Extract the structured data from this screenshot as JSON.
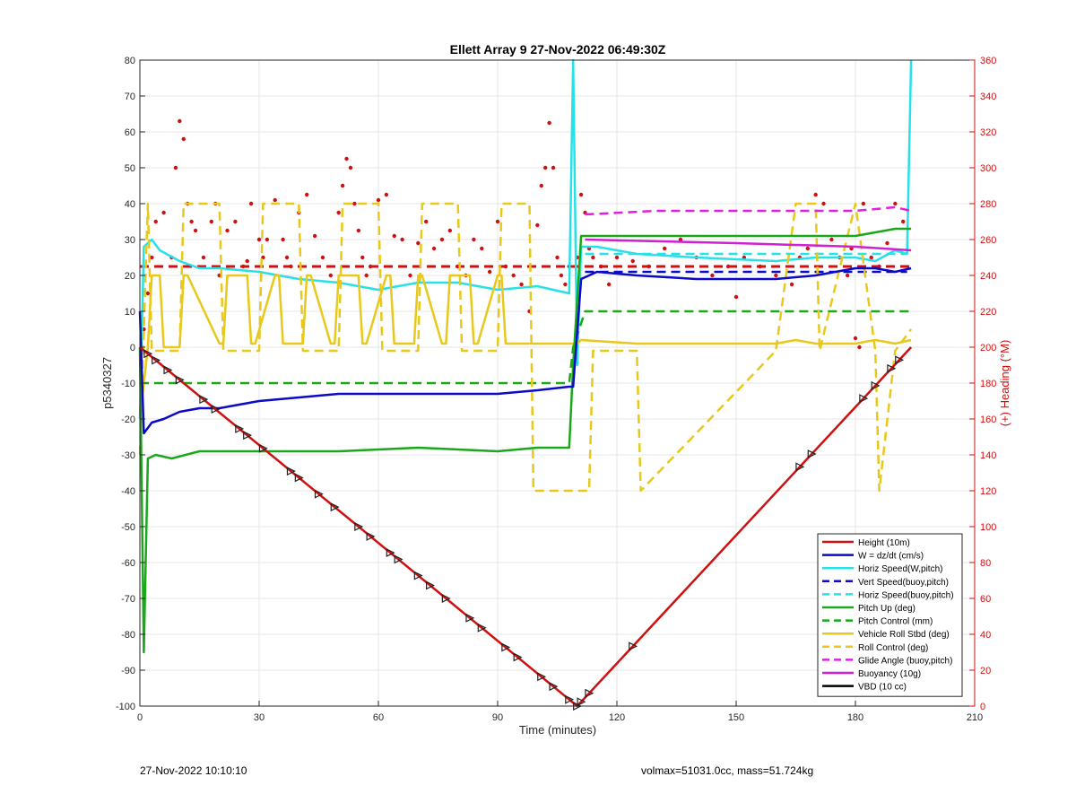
{
  "footer": {
    "left": "27-Nov-2022 10:10:10",
    "right": "volmax=51031.0cc, mass=51.724kg"
  },
  "chart_data": {
    "type": "line",
    "title": "Ellett Array 9 27-Nov-2022 06:49:30Z",
    "xlabel": "Time (minutes)",
    "ylabel": "p5340327",
    "y2label": "(+) Heading (°M)",
    "xlim": [
      0,
      210
    ],
    "ylim": [
      -100,
      80
    ],
    "y2lim": [
      0,
      360
    ],
    "xticks": [
      0,
      30,
      60,
      90,
      120,
      150,
      180,
      210
    ],
    "yticks": [
      -100,
      -90,
      -80,
      -70,
      -60,
      -50,
      -40,
      -30,
      -20,
      -10,
      0,
      10,
      20,
      30,
      40,
      50,
      60,
      70,
      80
    ],
    "y2ticks": [
      0,
      20,
      40,
      60,
      80,
      100,
      120,
      140,
      160,
      180,
      200,
      220,
      240,
      260,
      280,
      300,
      320,
      340,
      360
    ],
    "grid": true,
    "legend_position": "bottom-right",
    "colors": {
      "height": "#d01010",
      "w": "#0a0ac8",
      "horiz": "#28e0e8",
      "pitch": "#1aa81a",
      "roll": "#e8c81a",
      "glide": "#e020e0",
      "buoy": "#d020d0",
      "vbd": "#000000",
      "heading": "#d01010",
      "right_axis": "#d01010"
    },
    "series": [
      {
        "name": "Height (10m)",
        "style": "solid",
        "color": "#d01010",
        "x": [
          0,
          110,
          194
        ],
        "y": [
          0,
          -100,
          0
        ]
      },
      {
        "name": "W = dz/dt (cm/s)",
        "style": "solid",
        "color": "#0a0ac8",
        "x": [
          0,
          1,
          3,
          6,
          10,
          15,
          20,
          30,
          40,
          50,
          60,
          70,
          80,
          90,
          100,
          108,
          109,
          111,
          115,
          125,
          140,
          160,
          170,
          180,
          185,
          190,
          194
        ],
        "y": [
          10,
          -24,
          -21,
          -20,
          -18,
          -17,
          -17,
          -15,
          -14,
          -13,
          -13,
          -13,
          -13,
          -13,
          -12,
          -11,
          -11,
          19,
          21,
          20,
          19,
          19,
          20,
          22,
          22,
          21,
          22
        ]
      },
      {
        "name": "Horiz Speed(W,pitch)",
        "style": "solid",
        "color": "#28e0e8",
        "x": [
          0,
          1,
          3,
          5,
          10,
          15,
          20,
          30,
          40,
          50,
          60,
          70,
          80,
          90,
          100,
          108,
          109,
          110,
          111,
          115,
          125,
          140,
          160,
          170,
          180,
          185,
          190,
          193,
          194
        ],
        "y": [
          -20,
          28,
          30,
          27,
          24,
          22,
          22,
          21,
          19,
          18,
          16,
          18,
          18,
          16,
          17,
          15,
          80,
          -5,
          28,
          28,
          26,
          25,
          24,
          25,
          25,
          24,
          27,
          26,
          80
        ]
      },
      {
        "name": "Vert Speed(buoy,pitch)",
        "style": "dashed",
        "color": "#0a0ac8",
        "x": [
          112,
          193
        ],
        "y": [
          21,
          21
        ]
      },
      {
        "name": "Horiz Speed(buoy,pitch)",
        "style": "dashed",
        "color": "#28e0e8",
        "x": [
          112,
          193
        ],
        "y": [
          26,
          26
        ]
      },
      {
        "name": "Pitch Up (deg)",
        "style": "solid",
        "color": "#1aa81a",
        "x": [
          0,
          1,
          2,
          4,
          8,
          15,
          30,
          50,
          70,
          90,
          100,
          108,
          109,
          111,
          130,
          160,
          180,
          190,
          194
        ],
        "y": [
          0,
          -85,
          -31,
          -30,
          -31,
          -29,
          -29,
          -29,
          -28,
          -29,
          -28,
          -28,
          -5,
          31,
          31,
          31,
          31,
          33,
          33
        ]
      },
      {
        "name": "Pitch Control (mm)",
        "style": "dashed",
        "color": "#1aa81a",
        "x": [
          0,
          1,
          108,
          109,
          112,
          140,
          194
        ],
        "y": [
          -10,
          -10,
          -10,
          0,
          10,
          10,
          10
        ]
      },
      {
        "name": "Vehicle Roll Stbd (deg)",
        "style": "solid",
        "color": "#e8c81a",
        "x": [
          0,
          2,
          3,
          5,
          6,
          10,
          11,
          12,
          20,
          21,
          22,
          27,
          28,
          29,
          34,
          35,
          36,
          41,
          42,
          43,
          48,
          49,
          50,
          55,
          56,
          57,
          62,
          63,
          64,
          69,
          70,
          71,
          76,
          77,
          78,
          83,
          84,
          85,
          90,
          91,
          92,
          97,
          98,
          110,
          111,
          125,
          160,
          165,
          170,
          180,
          185,
          190,
          194
        ],
        "y": [
          -20,
          0,
          20,
          20,
          0,
          0,
          20,
          20,
          1,
          1,
          20,
          20,
          1,
          1,
          20,
          20,
          1,
          1,
          20,
          20,
          1,
          1,
          20,
          20,
          1,
          1,
          20,
          20,
          1,
          1,
          20,
          20,
          1,
          1,
          20,
          20,
          1,
          1,
          20,
          20,
          1,
          1,
          1,
          1,
          2,
          1,
          1,
          2,
          1,
          1,
          2,
          1,
          2
        ]
      },
      {
        "name": "Roll Control (deg)",
        "style": "dashed",
        "color": "#e8c81a",
        "x": [
          0,
          2,
          3,
          10,
          11,
          20,
          21,
          30,
          31,
          40,
          41,
          50,
          51,
          60,
          61,
          70,
          71,
          80,
          81,
          90,
          91,
          98,
          99,
          113,
          114,
          125,
          126,
          160,
          165,
          170,
          171,
          180,
          185,
          186,
          190,
          194
        ],
        "y": [
          -30,
          40,
          -1,
          -1,
          40,
          40,
          -1,
          -1,
          40,
          40,
          -1,
          -1,
          40,
          40,
          -1,
          -1,
          40,
          40,
          -1,
          -1,
          40,
          40,
          -40,
          -40,
          -1,
          -1,
          -40,
          -1,
          40,
          40,
          -1,
          40,
          -1,
          -40,
          -1,
          5
        ]
      },
      {
        "name": "Glide Angle (buoy,pitch)",
        "style": "dashed",
        "color": "#e020e0",
        "x": [
          112,
          130,
          160,
          180,
          190,
          194
        ],
        "y": [
          37,
          38,
          38,
          38,
          39,
          38
        ]
      },
      {
        "name": "Buoyancy (10g)",
        "style": "solid",
        "color": "#d020d0",
        "x": [
          112,
          150,
          180,
          194
        ],
        "y": [
          30,
          29,
          28,
          27
        ]
      },
      {
        "name": "VBD (10 cc)",
        "style": "solid",
        "color": "#000000",
        "x": [
          0,
          1,
          108,
          111,
          194
        ],
        "y": [
          15,
          -10.5,
          -10.5,
          10,
          11
        ]
      }
    ],
    "heading_reference": {
      "axis": "right",
      "style": "dashed",
      "color": "#d01010",
      "value": 245
    },
    "heading_points_axis": "right",
    "heading_points": {
      "x": [
        1,
        2,
        3,
        4,
        6,
        8,
        9,
        10,
        11,
        12,
        13,
        14,
        16,
        18,
        19,
        20,
        22,
        24,
        26,
        27,
        28,
        30,
        31,
        32,
        34,
        36,
        37,
        38,
        40,
        42,
        44,
        46,
        48,
        50,
        51,
        52,
        53,
        54,
        55,
        56,
        57,
        58,
        60,
        62,
        64,
        66,
        68,
        70,
        72,
        74,
        76,
        78,
        80,
        82,
        84,
        86,
        88,
        90,
        92,
        94,
        96,
        98,
        100,
        101,
        102,
        103,
        104,
        105,
        106,
        107,
        108,
        110,
        111,
        112,
        113,
        114,
        116,
        118,
        120,
        124,
        128,
        132,
        136,
        140,
        144,
        148,
        150,
        152,
        156,
        160,
        164,
        166,
        168,
        170,
        172,
        174,
        176,
        178,
        179,
        180,
        181,
        182,
        184,
        186,
        188,
        190,
        192
      ],
      "y": [
        210,
        230,
        250,
        270,
        275,
        250,
        300,
        326,
        316,
        280,
        270,
        265,
        250,
        270,
        280,
        240,
        265,
        270,
        245,
        248,
        280,
        260,
        250,
        260,
        282,
        260,
        250,
        245,
        275,
        285,
        262,
        250,
        240,
        275,
        290,
        305,
        300,
        280,
        265,
        250,
        240,
        245,
        282,
        285,
        262,
        260,
        240,
        258,
        270,
        255,
        260,
        265,
        245,
        240,
        260,
        255,
        242,
        270,
        245,
        240,
        235,
        220,
        268,
        290,
        300,
        325,
        300,
        250,
        240,
        235,
        245,
        250,
        285,
        275,
        255,
        250,
        245,
        235,
        250,
        248,
        245,
        255,
        260,
        250,
        240,
        245,
        228,
        250,
        245,
        240,
        235,
        250,
        255,
        285,
        280,
        260,
        250,
        240,
        255,
        205,
        200,
        280,
        250,
        245,
        258,
        280,
        270
      ]
    },
    "turn_markers": {
      "x": [
        2,
        4,
        7,
        10,
        16,
        19,
        25,
        27,
        31,
        38,
        40,
        45,
        49,
        55,
        58,
        63,
        65,
        70,
        73,
        77,
        83,
        86,
        92,
        95,
        101,
        104,
        108,
        110,
        111,
        113,
        124,
        166,
        169,
        182,
        185,
        189,
        191
      ]
    }
  }
}
